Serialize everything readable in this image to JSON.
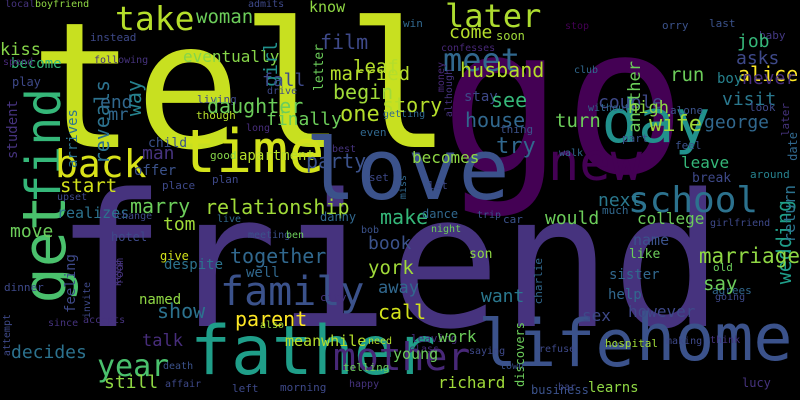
{
  "colors": {
    "background": "#000000",
    "palette": [
      "#440154",
      "#46337e",
      "#365c8d",
      "#277f8e",
      "#1fa187",
      "#4ac16d",
      "#a0da39",
      "#fde725"
    ]
  },
  "words": [
    {
      "text": "tell",
      "color": "#c8e020"
    },
    {
      "text": "go",
      "color": "#440154"
    },
    {
      "text": "friend",
      "color": "#46337e"
    },
    {
      "text": "love",
      "color": "#3b528b"
    },
    {
      "text": "time",
      "color": "#d2e21b"
    },
    {
      "text": "day",
      "color": "#21918c"
    },
    {
      "text": "new",
      "color": "#440154"
    },
    {
      "text": "get",
      "color": "#4ac16d"
    },
    {
      "text": "find",
      "color": "#35b779"
    },
    {
      "text": "father",
      "color": "#1f9e89"
    },
    {
      "text": "life",
      "color": "#3b528b"
    },
    {
      "text": "home",
      "color": "#3b528b"
    },
    {
      "text": "back",
      "color": "#d8e219"
    },
    {
      "text": "family",
      "color": "#3b528b"
    },
    {
      "text": "mother",
      "color": "#482878"
    },
    {
      "text": "school",
      "color": "#2c728e"
    },
    {
      "text": "take",
      "color": "#b5de2b"
    },
    {
      "text": "meet",
      "color": "#31688e"
    },
    {
      "text": "later",
      "color": "#addc30"
    },
    {
      "text": "year",
      "color": "#4ac16d"
    },
    {
      "text": "woman",
      "color": "#6ccd5a"
    },
    {
      "text": "kiss",
      "color": "#86d549"
    },
    {
      "text": "boyfriend",
      "color": "#8fd744"
    },
    {
      "text": "local",
      "color": "#46337e"
    },
    {
      "text": "admits",
      "color": "#3e4989"
    },
    {
      "text": "know",
      "color": "#8fd744"
    },
    {
      "text": "win",
      "color": "#31688e"
    },
    {
      "text": "orry",
      "color": "#3b528b"
    },
    {
      "text": "baby",
      "color": "#443983"
    },
    {
      "text": "last",
      "color": "#3b528b"
    },
    {
      "text": "become",
      "color": "#35b779"
    },
    {
      "text": "instead",
      "color": "#3e4989"
    },
    {
      "text": "eventually",
      "color": "#86d549"
    },
    {
      "text": "film",
      "color": "#3e4989"
    },
    {
      "text": "letter",
      "color": "#6ccd5a"
    },
    {
      "text": "come",
      "color": "#b5de2b"
    },
    {
      "text": "soon",
      "color": "#a0da39"
    },
    {
      "text": "stop",
      "color": "#440154"
    },
    {
      "text": "job",
      "color": "#35b779"
    },
    {
      "text": "play",
      "color": "#3e4989"
    },
    {
      "text": "spend",
      "color": "#482878"
    },
    {
      "text": "following",
      "color": "#46337e"
    },
    {
      "text": "confesses",
      "color": "#482878"
    },
    {
      "text": "club",
      "color": "#31688e"
    },
    {
      "text": "alice",
      "color": "#fde725"
    },
    {
      "text": "reveals",
      "color": "#2c728e"
    },
    {
      "text": "girl",
      "color": "#21918c"
    },
    {
      "text": "married",
      "color": "#b5de2b"
    },
    {
      "text": "money",
      "color": "#482878"
    },
    {
      "text": "couple",
      "color": "#3e4989"
    },
    {
      "text": "boy",
      "color": "#26828e"
    },
    {
      "text": "asks",
      "color": "#3e4989"
    },
    {
      "text": "student",
      "color": "#46337e"
    },
    {
      "text": "mr",
      "color": "#31688e"
    },
    {
      "text": "living",
      "color": "#3e4989"
    },
    {
      "text": "fall",
      "color": "#3e4989"
    },
    {
      "text": "leaf",
      "color": "#b5de2b"
    },
    {
      "text": "husband",
      "color": "#b5de2b"
    },
    {
      "text": "another",
      "color": "#6ccd5a"
    },
    {
      "text": "run",
      "color": "#6ccd5a"
    },
    {
      "text": "never",
      "color": "#472d7b"
    },
    {
      "text": "end",
      "color": "#31688e"
    },
    {
      "text": "way",
      "color": "#26828e"
    },
    {
      "text": "drive",
      "color": "#3e4989"
    },
    {
      "text": "although",
      "color": "#46337e"
    },
    {
      "text": "stay",
      "color": "#3e4989"
    },
    {
      "text": "high",
      "color": "#8fd744"
    },
    {
      "text": "visit",
      "color": "#2a788e"
    },
    {
      "text": "arrives",
      "color": "#2c728e"
    },
    {
      "text": "daughter",
      "color": "#6ccd5a"
    },
    {
      "text": "finally",
      "color": "#6ccd5a"
    },
    {
      "text": "begin",
      "color": "#a0da39"
    },
    {
      "text": "getting",
      "color": "#31688e"
    },
    {
      "text": "george",
      "color": "#31688e"
    },
    {
      "text": "without",
      "color": "#31688e"
    },
    {
      "text": "alone",
      "color": "#3b528b"
    },
    {
      "text": "look",
      "color": "#3e4989"
    },
    {
      "text": "one",
      "color": "#b5de2b"
    },
    {
      "text": "house",
      "color": "#31688e"
    },
    {
      "text": "see",
      "color": "#35b779"
    },
    {
      "text": "turn",
      "color": "#6ccd5a"
    },
    {
      "text": "part",
      "color": "#3b528b"
    },
    {
      "text": "feel",
      "color": "#3b528b"
    },
    {
      "text": "though",
      "color": "#b5de2b"
    },
    {
      "text": "long",
      "color": "#472d7b"
    },
    {
      "text": "story",
      "color": "#b5de2b"
    },
    {
      "text": "even",
      "color": "#31688e"
    },
    {
      "text": "thing",
      "color": "#3b528b"
    },
    {
      "text": "wife",
      "color": "#a0da39"
    },
    {
      "text": "later",
      "color": "#46337e"
    },
    {
      "text": "date",
      "color": "#31688e"
    },
    {
      "text": "child",
      "color": "#3b528b"
    },
    {
      "text": "man",
      "color": "#46337e"
    },
    {
      "text": "good",
      "color": "#86d549"
    },
    {
      "text": "apartment",
      "color": "#b5de2b"
    },
    {
      "text": "best",
      "color": "#46337e"
    },
    {
      "text": "walk",
      "color": "#31688e"
    },
    {
      "text": "try",
      "color": "#31688e"
    },
    {
      "text": "offer",
      "color": "#3b528b"
    },
    {
      "text": "party",
      "color": "#3b528b"
    },
    {
      "text": "becomes",
      "color": "#8fd744"
    },
    {
      "text": "leave",
      "color": "#35b779"
    },
    {
      "text": "break",
      "color": "#3e4989"
    },
    {
      "text": "around",
      "color": "#26828e"
    },
    {
      "text": "plan",
      "color": "#3e4989"
    },
    {
      "text": "set",
      "color": "#3e4989"
    },
    {
      "text": "miss",
      "color": "#31688e"
    },
    {
      "text": "start",
      "color": "#d2e21b"
    },
    {
      "text": "place",
      "color": "#3e4989"
    },
    {
      "text": "let",
      "color": "#3e4989"
    },
    {
      "text": "next",
      "color": "#2a788e"
    },
    {
      "text": "upset",
      "color": "#3e4989"
    },
    {
      "text": "marry",
      "color": "#6ccd5a"
    },
    {
      "text": "relationship",
      "color": "#a0da39"
    },
    {
      "text": "tom",
      "color": "#a0da39"
    },
    {
      "text": "realizes",
      "color": "#2c728e"
    },
    {
      "text": "change",
      "color": "#3e4989"
    },
    {
      "text": "live",
      "color": "#31688e"
    },
    {
      "text": "danny",
      "color": "#31688e"
    },
    {
      "text": "make",
      "color": "#35b779"
    },
    {
      "text": "dance",
      "color": "#31688e"
    },
    {
      "text": "trip",
      "color": "#3b528b"
    },
    {
      "text": "car",
      "color": "#3b528b"
    },
    {
      "text": "would",
      "color": "#6ccd5a"
    },
    {
      "text": "much",
      "color": "#31688e"
    },
    {
      "text": "college",
      "color": "#6ccd5a"
    },
    {
      "text": "girlfriend",
      "color": "#3e4989"
    },
    {
      "text": "wedding",
      "color": "#1f9e89"
    },
    {
      "text": "move",
      "color": "#6ccd5a"
    },
    {
      "text": "hotel",
      "color": "#3e4989"
    },
    {
      "text": "meeting",
      "color": "#3b528b"
    },
    {
      "text": "bob",
      "color": "#3b528b"
    },
    {
      "text": "night",
      "color": "#6ccd5a"
    },
    {
      "text": "book",
      "color": "#3b528b"
    },
    {
      "text": "ben",
      "color": "#6ccd5a"
    },
    {
      "text": "son",
      "color": "#8fd744"
    },
    {
      "text": "like",
      "color": "#6ccd5a"
    },
    {
      "text": "name",
      "color": "#3b528b"
    },
    {
      "text": "old",
      "color": "#6ccd5a"
    },
    {
      "text": "marriage",
      "color": "#8fd744"
    },
    {
      "text": "give",
      "color": "#d2e21b"
    },
    {
      "text": "room",
      "color": "#46337e"
    },
    {
      "text": "keep",
      "color": "#46337e"
    },
    {
      "text": "despite",
      "color": "#2c728e"
    },
    {
      "text": "together",
      "color": "#31688e"
    },
    {
      "text": "well",
      "color": "#31688e"
    },
    {
      "text": "city",
      "color": "#46337e"
    },
    {
      "text": "york",
      "color": "#a0da39"
    },
    {
      "text": "charlie",
      "color": "#31688e"
    },
    {
      "text": "sister",
      "color": "#31688e"
    },
    {
      "text": "agrees",
      "color": "#31688e"
    },
    {
      "text": "going",
      "color": "#3e4989"
    },
    {
      "text": "say",
      "color": "#6ccd5a"
    },
    {
      "text": "feeling",
      "color": "#3e4989"
    },
    {
      "text": "invite",
      "color": "#3e4989"
    },
    {
      "text": "away",
      "color": "#31688e"
    },
    {
      "text": "help",
      "color": "#31688e"
    },
    {
      "text": "dinner",
      "color": "#3e4989"
    },
    {
      "text": "named",
      "color": "#8fd744"
    },
    {
      "text": "show",
      "color": "#2c728e"
    },
    {
      "text": "parent",
      "color": "#fde725"
    },
    {
      "text": "call",
      "color": "#d2e21b"
    },
    {
      "text": "want",
      "color": "#2a788e"
    },
    {
      "text": "sex",
      "color": "#3e4989"
    },
    {
      "text": "however",
      "color": "#3e4989"
    },
    {
      "text": "return",
      "color": "#2c728e"
    },
    {
      "text": "attempt",
      "color": "#3e4989"
    },
    {
      "text": "since",
      "color": "#46337e"
    },
    {
      "text": "accepts",
      "color": "#46337e"
    },
    {
      "text": "also",
      "color": "#a0da39"
    },
    {
      "text": "class",
      "color": "#472d7b"
    },
    {
      "text": "saying",
      "color": "#3e4989"
    },
    {
      "text": "refuse",
      "color": "#3e4989"
    },
    {
      "text": "due",
      "color": "#3b528b"
    },
    {
      "text": "making",
      "color": "#3e4989"
    },
    {
      "text": "think",
      "color": "#46337e"
    },
    {
      "text": "talk",
      "color": "#472d7b"
    },
    {
      "text": "death",
      "color": "#3b528b"
    },
    {
      "text": "meanwhile",
      "color": "#b5de2b"
    },
    {
      "text": "need",
      "color": "#b5de2b"
    },
    {
      "text": "leaving",
      "color": "#472d7b"
    },
    {
      "text": "hospital",
      "color": "#a0da39"
    },
    {
      "text": "decides",
      "color": "#2c728e"
    },
    {
      "text": "still",
      "color": "#8fd744"
    },
    {
      "text": "young",
      "color": "#6ccd5a"
    },
    {
      "text": "work",
      "color": "#6ccd5a"
    },
    {
      "text": "discovers",
      "color": "#6ccd5a"
    },
    {
      "text": "town",
      "color": "#3b528b"
    },
    {
      "text": "telling",
      "color": "#6ccd5a"
    },
    {
      "text": "richard",
      "color": "#a0da39"
    },
    {
      "text": "business",
      "color": "#3b528b"
    },
    {
      "text": "bar",
      "color": "#3e4989"
    },
    {
      "text": "learns",
      "color": "#8fd744"
    },
    {
      "text": "lucy",
      "color": "#46337e"
    },
    {
      "text": "affair",
      "color": "#3e4989"
    },
    {
      "text": "left",
      "color": "#3e4989"
    },
    {
      "text": "morning",
      "color": "#3e4989"
    },
    {
      "text": "happy",
      "color": "#46337e"
    }
  ]
}
